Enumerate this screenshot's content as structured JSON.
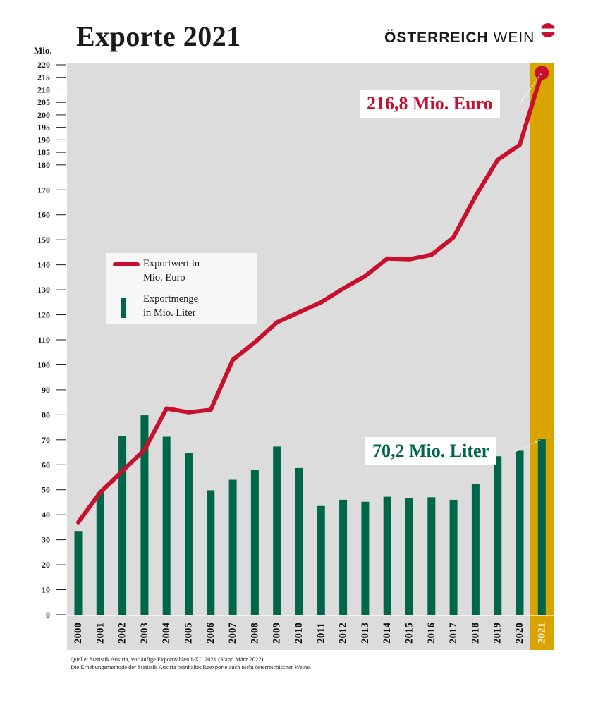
{
  "header": {
    "title": "Exporte 2021",
    "brand_bold": "ÖSTERREICH",
    "brand_light": " WEIN",
    "unit_label": "Mio."
  },
  "legend": {
    "line_label_1": "Exportwert in",
    "line_label_2": "Mio. Euro",
    "bar_label_1": "Exportmenge",
    "bar_label_2": "in Mio. Liter"
  },
  "callouts": {
    "value": "216,8 Mio. Euro",
    "volume": "70,2 Mio. Liter"
  },
  "source": {
    "line1": "Quelle: Statistik Austria, vorläufige Exportzahlen I-XII 2021 (Stand März 2022).",
    "line2": "Die Erhebungsmethode der Statistik Austria beinhaltet Reexporte auch nicht österreichischer Weine."
  },
  "colors": {
    "plot_background": "#dcdcdc",
    "highlight_year": "#d9a300",
    "line": "#c8102e",
    "bars": "#00664a"
  },
  "chart_data": {
    "type": "bar",
    "categories": [
      "2000",
      "2001",
      "2002",
      "2003",
      "2004",
      "2005",
      "2006",
      "2007",
      "2008",
      "2009",
      "2010",
      "2011",
      "2012",
      "2013",
      "2014",
      "2015",
      "2016",
      "2017",
      "2018",
      "2019",
      "2020",
      "2021"
    ],
    "highlight_category": "2021",
    "series": [
      {
        "name": "Exportmenge in Mio. Liter",
        "type": "bar",
        "values": [
          33.5,
          49,
          71.5,
          79.8,
          71.2,
          64.6,
          49.8,
          54,
          58,
          67.3,
          58.7,
          43.5,
          46,
          45.2,
          47.2,
          46.8,
          47,
          46,
          52.3,
          63.4,
          65.6,
          70.2
        ]
      },
      {
        "name": "Exportwert in Mio. Euro",
        "type": "line",
        "values": [
          37,
          49,
          57.5,
          66,
          82.5,
          81,
          82,
          102,
          109,
          117,
          121,
          125,
          130.5,
          135.5,
          142.5,
          142.2,
          144,
          151,
          167.5,
          182,
          188,
          216.8
        ]
      }
    ],
    "ylim": [
      0,
      220
    ],
    "yticks": [
      0,
      10,
      20,
      30,
      40,
      50,
      60,
      70,
      80,
      90,
      100,
      110,
      120,
      130,
      140,
      150,
      160,
      170,
      180,
      185,
      190,
      195,
      200,
      205,
      210,
      215,
      220
    ],
    "ytick_labels": [
      "0",
      "10",
      "20",
      "30",
      "40",
      "50",
      "60",
      "70",
      "80",
      "90",
      "100",
      "110",
      "120",
      "130",
      "140",
      "150",
      "160",
      "170",
      "180",
      "185",
      "190",
      "195",
      "200",
      "205",
      "210",
      "215",
      "220"
    ],
    "grid": false,
    "legend_position": "middle-left"
  }
}
